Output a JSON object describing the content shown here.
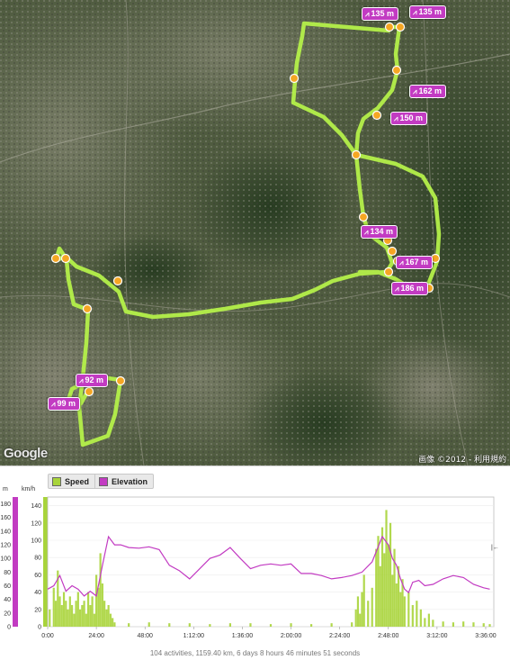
{
  "map": {
    "logo": "Google",
    "copyright": "画像 ©2012 - 利用規約",
    "elevation_labels": [
      "135 m",
      "135 m",
      "162 m",
      "150 m",
      "134 m",
      "167 m",
      "186 m",
      "92 m",
      "99 m"
    ]
  },
  "graph": {
    "legend": [
      {
        "label": "Speed",
        "color": "#a8d43a"
      },
      {
        "label": "Elevation",
        "color": "#c23bc2"
      }
    ],
    "left_axis_unit": "m",
    "right_axis_unit": "km/h",
    "summary": "104 activities, 1159.40 km, 6 days 8 hours 46 minutes 51 seconds",
    "colors": {
      "speed": "#a8d43a",
      "elevation": "#c23bc2",
      "route": "#b4f04a"
    }
  },
  "chart_data": {
    "type": "bar",
    "x_ticks": [
      "0:00",
      "24:00",
      "48:00",
      "1:12:00",
      "1:36:00",
      "2:00:00",
      "2:24:00",
      "2:48:00",
      "3:12:00",
      "3:36:00"
    ],
    "x_range_minutes": [
      0,
      220
    ],
    "elevation_ticks": [
      "0",
      "20",
      "40",
      "60",
      "80",
      "100",
      "120",
      "140",
      "160",
      "180"
    ],
    "speed_ticks": [
      "0",
      "20",
      "40",
      "60",
      "80",
      "100",
      "120",
      "140"
    ],
    "elevation_range": [
      0,
      190
    ],
    "speed_range": [
      0,
      150
    ],
    "series": [
      {
        "name": "Elevation",
        "x": [
          0,
          3,
          6,
          9,
          12,
          15,
          18,
          21,
          24,
          27,
          30,
          33,
          36,
          40,
          45,
          50,
          55,
          60,
          65,
          70,
          75,
          80,
          85,
          90,
          95,
          100,
          105,
          110,
          115,
          120,
          125,
          130,
          135,
          140,
          145,
          150,
          155,
          160,
          165,
          168,
          170,
          172,
          174,
          176,
          178,
          180,
          183,
          186,
          190,
          195,
          200,
          205,
          210,
          215,
          218
        ],
        "values": [
          55,
          60,
          75,
          52,
          60,
          55,
          45,
          52,
          45,
          90,
          132,
          120,
          120,
          116,
          115,
          117,
          113,
          90,
          82,
          70,
          85,
          100,
          105,
          116,
          100,
          85,
          90,
          92,
          90,
          92,
          78,
          78,
          75,
          70,
          72,
          75,
          80,
          95,
          132,
          120,
          100,
          90,
          70,
          55,
          50,
          65,
          68,
          60,
          62,
          70,
          75,
          72,
          62,
          57,
          55
        ]
      },
      {
        "name": "Speed",
        "x": [
          1,
          3,
          4,
          5,
          6,
          7,
          8,
          9,
          10,
          11,
          12,
          13,
          14,
          15,
          16,
          17,
          18,
          19,
          20,
          21,
          22,
          23,
          24,
          25,
          26,
          27,
          28,
          29,
          30,
          31,
          32,
          33,
          40,
          50,
          60,
          70,
          80,
          90,
          100,
          110,
          120,
          130,
          140,
          150,
          152,
          153,
          154,
          155,
          156,
          158,
          160,
          162,
          163,
          164,
          165,
          166,
          167,
          168,
          169,
          170,
          171,
          172,
          173,
          174,
          175,
          176,
          178,
          180,
          182,
          184,
          186,
          188,
          190,
          195,
          200,
          205,
          210,
          215,
          218
        ],
        "values": [
          20,
          45,
          30,
          65,
          35,
          25,
          40,
          30,
          20,
          35,
          25,
          15,
          30,
          40,
          20,
          25,
          30,
          15,
          40,
          25,
          35,
          15,
          60,
          45,
          85,
          50,
          30,
          20,
          25,
          15,
          10,
          5,
          4,
          5,
          4,
          4,
          3,
          4,
          4,
          3,
          4,
          3,
          4,
          5,
          20,
          35,
          15,
          40,
          60,
          30,
          45,
          90,
          105,
          70,
          115,
          85,
          135,
          95,
          120,
          60,
          90,
          50,
          70,
          40,
          55,
          35,
          40,
          25,
          30,
          20,
          10,
          15,
          8,
          6,
          5,
          6,
          5,
          4,
          3
        ]
      }
    ]
  }
}
